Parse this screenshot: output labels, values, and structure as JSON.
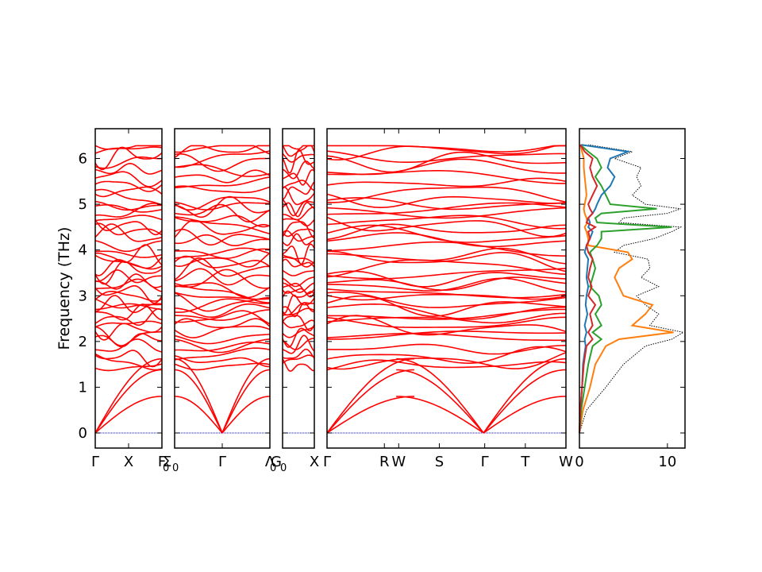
{
  "chart_data": {
    "type": "line",
    "title": "",
    "ylabel": "Frequency (THz)",
    "ylim": [
      -0.33,
      6.63
    ],
    "yticks": [
      0,
      1,
      2,
      3,
      4,
      5,
      6
    ],
    "ytick_labels": [
      "0",
      "1",
      "2",
      "3",
      "4",
      "5",
      "6"
    ],
    "band_color": "#ff0000",
    "zero_line_color": "#0000ff",
    "band_segments": [
      {
        "id": "gamma-x-f0",
        "path_labels": [
          {
            "s": 0,
            "text": "Γ"
          },
          {
            "s": 0.5,
            "text": "X"
          },
          {
            "s": 1,
            "text": "F"
          }
        ],
        "end_labels": [
          {
            "text": "Σ",
            "sub": "0"
          }
        ]
      },
      {
        "id": "sigma0-gamma-lambda0",
        "path_labels": [
          {
            "s": 0.5,
            "text": "Γ"
          },
          {
            "s": 1,
            "text": "Λ"
          }
        ],
        "end_labels": [
          {
            "text": "G",
            "sub": "0"
          }
        ]
      },
      {
        "id": "g0-x",
        "path_labels": [
          {
            "s": 1,
            "text": "X"
          }
        ]
      },
      {
        "id": "gamma-r-w-s-gamma-t-w",
        "path_labels": [
          {
            "s": 0,
            "text": "Γ"
          },
          {
            "s": 0.24,
            "text": "R"
          },
          {
            "s": 0.3,
            "text": "W"
          },
          {
            "s": 0.47,
            "text": "S"
          },
          {
            "s": 0.66,
            "text": "Γ"
          },
          {
            "s": 0.83,
            "text": "T"
          },
          {
            "s": 1,
            "text": "W"
          }
        ]
      }
    ],
    "optic_levels_thz": [
      1.47,
      1.58,
      1.67,
      1.85,
      2.05,
      2.15,
      2.28,
      2.35,
      2.5,
      2.6,
      2.7,
      2.78,
      2.85,
      3.0,
      3.1,
      3.2,
      3.28,
      3.4,
      3.55,
      3.68,
      3.78,
      3.85,
      3.95,
      4.2,
      4.28,
      4.42,
      4.55,
      4.65,
      4.82,
      4.92,
      5.0,
      5.1,
      5.3,
      5.45,
      5.6,
      5.75,
      5.95,
      6.05,
      6.18,
      6.25
    ],
    "acoustic_top_thz": [
      0.8,
      1.38,
      1.62
    ],
    "dos": {
      "xlim": [
        0,
        12
      ],
      "xticks": [
        0,
        10
      ],
      "xtick_labels": [
        "0",
        "10"
      ],
      "frequency_thz": [
        0.0,
        0.5,
        1.0,
        1.5,
        1.9,
        2.05,
        2.2,
        2.35,
        2.6,
        2.8,
        3.0,
        3.2,
        3.4,
        3.6,
        3.8,
        3.95,
        4.1,
        4.25,
        4.4,
        4.5,
        4.6,
        4.7,
        4.8,
        4.9,
        5.0,
        5.2,
        5.4,
        5.6,
        5.8,
        6.0,
        6.15,
        6.3
      ],
      "series": [
        {
          "name": "",
          "color": "#000000",
          "style": "dotted",
          "values": [
            0.0,
            0.8,
            3.0,
            5.0,
            7.5,
            10.5,
            11.8,
            8.0,
            9.0,
            7.5,
            6.5,
            9.0,
            7.0,
            8.0,
            7.8,
            4.0,
            5.0,
            8.5,
            10.5,
            11.5,
            4.5,
            5.0,
            10.0,
            11.5,
            7.5,
            6.0,
            7.0,
            6.5,
            7.0,
            4.0,
            6.0,
            1.0
          ]
        },
        {
          "name": "",
          "color": "#ff7f0e",
          "style": "solid",
          "values": [
            0.0,
            0.4,
            1.2,
            1.8,
            3.0,
            4.5,
            10.7,
            6.0,
            7.5,
            8.3,
            5.0,
            4.5,
            4.0,
            4.5,
            6.0,
            5.5,
            1.0,
            1.0,
            0.8,
            0.6,
            0.9,
            0.8,
            0.6,
            0.5,
            0.6,
            0.8,
            0.7,
            0.6,
            0.5,
            0.5,
            0.3,
            0.1
          ]
        },
        {
          "name": "",
          "color": "#2ca02c",
          "style": "solid",
          "values": [
            0.0,
            0.2,
            0.6,
            1.0,
            1.5,
            2.5,
            1.5,
            2.5,
            1.8,
            2.5,
            2.2,
            1.2,
            1.5,
            1.8,
            1.5,
            1.2,
            2.0,
            2.5,
            2.5,
            10.5,
            2.0,
            1.8,
            2.5,
            8.8,
            3.5,
            3.0,
            2.5,
            1.8,
            2.5,
            2.0,
            1.0,
            0.1
          ]
        },
        {
          "name": "",
          "color": "#1f77b4",
          "style": "solid",
          "values": [
            0.0,
            0.1,
            0.3,
            0.4,
            0.7,
            0.6,
            0.8,
            0.6,
            0.9,
            0.7,
            0.8,
            1.0,
            0.8,
            0.9,
            1.0,
            0.6,
            0.8,
            1.2,
            1.5,
            1.0,
            1.2,
            1.0,
            1.5,
            1.8,
            2.0,
            2.5,
            3.5,
            4.0,
            3.2,
            3.5,
            5.5,
            0.2
          ]
        },
        {
          "name": "",
          "color": "#d62728",
          "style": "solid",
          "values": [
            0.0,
            0.1,
            0.3,
            0.5,
            0.8,
            1.5,
            1.0,
            1.5,
            1.2,
            1.8,
            1.0,
            1.4,
            1.0,
            1.2,
            1.5,
            1.0,
            0.8,
            1.2,
            1.0,
            1.8,
            0.8,
            1.0,
            1.5,
            1.2,
            1.0,
            1.5,
            2.0,
            1.5,
            1.2,
            1.5,
            0.6,
            0.1
          ]
        }
      ]
    }
  }
}
